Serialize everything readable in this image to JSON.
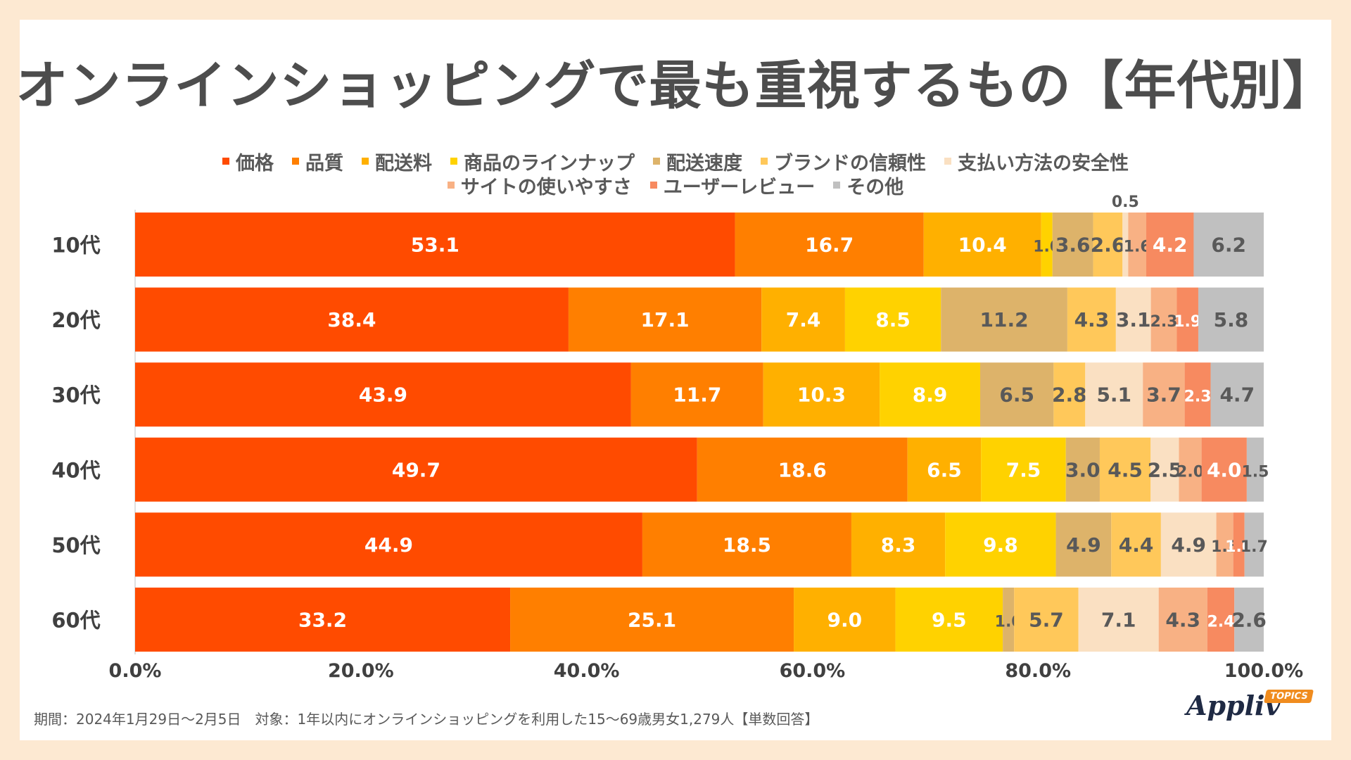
{
  "title": "オンラインショッピングで最も重視するもの【年代別】",
  "legend": [
    {
      "label": "価格",
      "color": "#ff4b00"
    },
    {
      "label": "品質",
      "color": "#ff7f00"
    },
    {
      "label": "配送料",
      "color": "#ffb000"
    },
    {
      "label": "商品のラインナップ",
      "color": "#ffd200"
    },
    {
      "label": "配送速度",
      "color": "#ddb36a"
    },
    {
      "label": "ブランドの信頼性",
      "color": "#ffc85a"
    },
    {
      "label": "支払い方法の安全性",
      "color": "#fae0c2"
    },
    {
      "label": "サイトの使いやすさ",
      "color": "#f8b184"
    },
    {
      "label": "ユーザーレビュー",
      "color": "#f78a60"
    },
    {
      "label": "その他",
      "color": "#c0c0c0"
    }
  ],
  "chart_data": {
    "type": "bar",
    "orientation": "horizontal",
    "stacked": "percent",
    "categories": [
      "10代",
      "20代",
      "30代",
      "40代",
      "50代",
      "60代"
    ],
    "series": [
      {
        "name": "価格",
        "values": [
          53.1,
          38.4,
          43.9,
          49.7,
          44.9,
          33.2
        ]
      },
      {
        "name": "品質",
        "values": [
          16.7,
          17.1,
          11.7,
          18.6,
          18.5,
          25.1
        ]
      },
      {
        "name": "配送料",
        "values": [
          10.4,
          7.4,
          10.3,
          6.5,
          8.3,
          9.0
        ]
      },
      {
        "name": "商品のラインナップ",
        "values": [
          1.0,
          8.5,
          8.9,
          7.5,
          9.8,
          9.5
        ]
      },
      {
        "name": "配送速度",
        "values": [
          3.6,
          11.2,
          6.5,
          3.0,
          4.9,
          1.0
        ]
      },
      {
        "name": "ブランドの信頼性",
        "values": [
          2.6,
          4.3,
          2.8,
          4.5,
          4.4,
          5.7
        ]
      },
      {
        "name": "支払い方法の安全性",
        "values": [
          0.5,
          3.1,
          5.1,
          2.5,
          4.9,
          7.1
        ]
      },
      {
        "name": "サイトの使いやすさ",
        "values": [
          1.6,
          2.3,
          3.7,
          2.0,
          1.5,
          4.3
        ]
      },
      {
        "name": "ユーザーレビュー",
        "values": [
          4.2,
          1.9,
          2.3,
          4.0,
          1.0,
          2.4
        ]
      },
      {
        "name": "その他",
        "values": [
          6.2,
          5.8,
          4.7,
          1.5,
          1.7,
          2.6
        ]
      }
    ],
    "x_tick_labels": [
      "0.0%",
      "20.0%",
      "40.0%",
      "60.0%",
      "80.0%",
      "100.0%"
    ],
    "xlim": [
      0,
      100
    ],
    "legend_position": "top"
  },
  "footer": "期間：2024年1月29日～2月5日　対象：1年以内にオンラインショッピングを利用した15～69歳男女1,279人【単数回答】",
  "logo": {
    "name": "Appliv",
    "badge": "TOPICS"
  }
}
